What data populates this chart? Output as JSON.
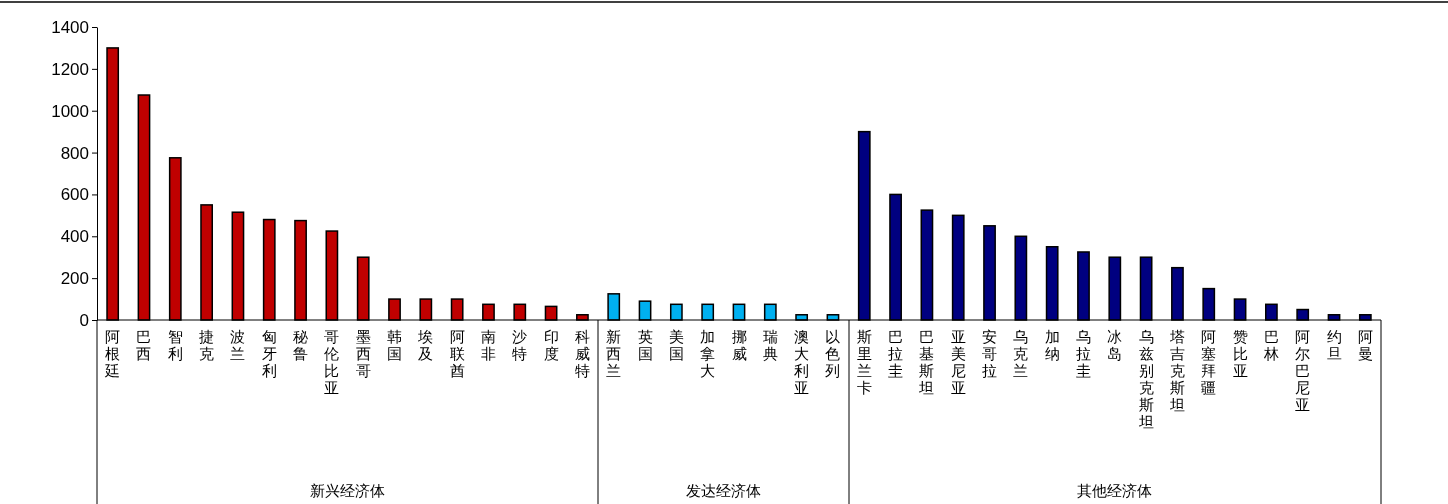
{
  "chart_data": {
    "type": "bar",
    "categories": [
      "阿根廷",
      "巴西",
      "智利",
      "捷克",
      "波兰",
      "匈牙利",
      "秘鲁",
      "哥伦比亚",
      "墨西哥",
      "韩国",
      "埃及",
      "阿联酋",
      "南非",
      "沙特",
      "印度",
      "科威特",
      "新西兰",
      "英国",
      "美国",
      "加拿大",
      "挪威",
      "瑞典",
      "澳大利亚",
      "以色列",
      "斯里兰卡",
      "巴拉圭",
      "巴基斯坦",
      "亚美尼亚",
      "安哥拉",
      "乌克兰",
      "加纳",
      "乌拉圭",
      "冰岛",
      "乌兹别克斯坦",
      "塔吉克斯坦",
      "阿塞拜疆",
      "赞比亚",
      "巴林",
      "阿尔巴尼亚",
      "约旦",
      "阿曼"
    ],
    "values": [
      1300,
      1075,
      775,
      550,
      515,
      480,
      475,
      425,
      300,
      100,
      100,
      100,
      75,
      75,
      65,
      25,
      125,
      90,
      75,
      75,
      75,
      75,
      25,
      25,
      900,
      600,
      525,
      500,
      450,
      400,
      350,
      325,
      300,
      300,
      250,
      150,
      100,
      75,
      50,
      25,
      25
    ],
    "colors": [
      "#c00000",
      "#c00000",
      "#c00000",
      "#c00000",
      "#c00000",
      "#c00000",
      "#c00000",
      "#c00000",
      "#c00000",
      "#c00000",
      "#c00000",
      "#c00000",
      "#c00000",
      "#c00000",
      "#c00000",
      "#c00000",
      "#00b0f0",
      "#00b0f0",
      "#00b0f0",
      "#00b0f0",
      "#00b0f0",
      "#00b0f0",
      "#00b0f0",
      "#00b0f0",
      "#000080",
      "#000080",
      "#000080",
      "#000080",
      "#000080",
      "#000080",
      "#000080",
      "#000080",
      "#000080",
      "#000080",
      "#000080",
      "#000080",
      "#000080",
      "#000080",
      "#000080",
      "#000080",
      "#000080"
    ],
    "annotations": [
      "新兴经济体",
      "发达经济体",
      "其他经济体"
    ],
    "ylim": [
      0,
      1400
    ],
    "yticks": [
      0,
      200,
      400,
      600,
      800,
      1000,
      1200,
      1400
    ]
  }
}
